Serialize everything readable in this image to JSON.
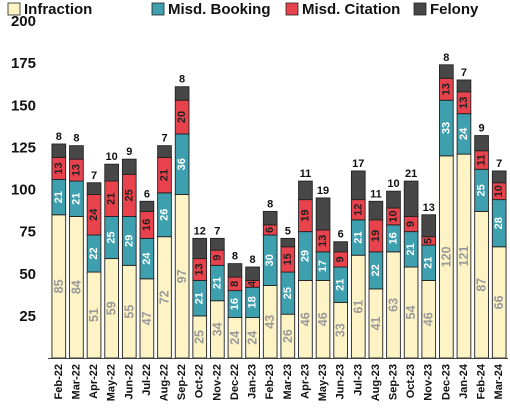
{
  "chart_data": {
    "type": "bar",
    "stacked": true,
    "title": "",
    "xlabel": "",
    "ylabel": "",
    "ylim": [
      0,
      200
    ],
    "yticks": [
      25,
      50,
      75,
      100,
      125,
      150,
      175,
      200
    ],
    "grid": false,
    "legend_position": "top",
    "categories": [
      "Feb-22",
      "Mar-22",
      "Apr-22",
      "May-22",
      "Jun-22",
      "Jul-22",
      "Aug-22",
      "Sep-22",
      "Oct-22",
      "Nov-22",
      "Dec-22",
      "Jan-23",
      "Feb-23",
      "Mar-23",
      "Apr-23",
      "May-23",
      "Jun-23",
      "Jul-23",
      "Aug-23",
      "Sep-23",
      "Oct-23",
      "Nov-23",
      "Dec-23",
      "Jan-24",
      "Feb-24",
      "Mar-24"
    ],
    "series": [
      {
        "name": "Infraction",
        "color": "#fdf3c4",
        "label_color": "#9a9a9a",
        "values": [
          85,
          84,
          51,
          59,
          55,
          47,
          72,
          97,
          25,
          34,
          24,
          24,
          43,
          26,
          46,
          46,
          33,
          61,
          41,
          63,
          54,
          46,
          120,
          121,
          87,
          66
        ]
      },
      {
        "name": "Misd. Booking",
        "color": "#3e9fae",
        "label_color": "#ffffff",
        "values": [
          21,
          21,
          22,
          25,
          29,
          24,
          26,
          36,
          21,
          21,
          16,
          18,
          30,
          25,
          29,
          17,
          21,
          21,
          22,
          16,
          21,
          21,
          33,
          24,
          25,
          28
        ]
      },
      {
        "name": "Misd. Citation",
        "color": "#e8424c",
        "label_color": "#222222",
        "values": [
          13,
          13,
          24,
          21,
          25,
          16,
          21,
          20,
          13,
          9,
          8,
          4,
          6,
          15,
          19,
          13,
          9,
          12,
          19,
          10,
          9,
          5,
          13,
          13,
          11,
          10
        ]
      },
      {
        "name": "Felony",
        "color": "#474747",
        "label_color": "#222222",
        "values": [
          8,
          8,
          7,
          10,
          9,
          6,
          7,
          8,
          12,
          7,
          8,
          8,
          8,
          5,
          11,
          19,
          6,
          17,
          11,
          10,
          21,
          13,
          8,
          7,
          9,
          7
        ]
      }
    ]
  }
}
